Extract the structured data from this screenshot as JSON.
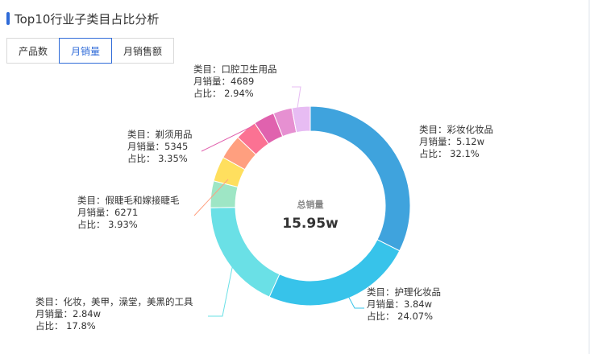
{
  "header": {
    "title": "Top10行业子类目占比分析",
    "accent_color": "#2f6bd8"
  },
  "tabs": [
    {
      "label": "产品数",
      "active": false
    },
    {
      "label": "月销量",
      "active": true
    },
    {
      "label": "月销售额",
      "active": false
    }
  ],
  "chart_data": {
    "type": "pie",
    "donut": true,
    "center_caption": "总销量",
    "center_value": "15.95w",
    "slices": [
      {
        "category": "彩妆化妆品",
        "value_text": "5.12w",
        "percent": 32.1,
        "color": "#3fa3dd",
        "label": {
          "l1": "类目：彩妆化妆品",
          "l2": "月销量：5.12w",
          "l3": "占比： 32.1%"
        }
      },
      {
        "category": "护理化妆品",
        "value_text": "3.84w",
        "percent": 24.07,
        "color": "#37c3ea",
        "label": {
          "l1": "类目：护理化妆品",
          "l2": "月销量：3.84w",
          "l3": "占比： 24.07%"
        }
      },
      {
        "category": "化妆，美甲，澡堂，美黑的工具",
        "value_text": "2.84w",
        "percent": 17.8,
        "color": "#6ae0e6",
        "label": {
          "l1": "类目：化妆，美甲，澡堂，美黑的工具",
          "l2": "月销量：2.84w",
          "l3": "占比： 17.8%"
        }
      },
      {
        "category": "",
        "value_text": "",
        "percent": 4.3,
        "color": "#9ee6c5",
        "label": null
      },
      {
        "category": "",
        "value_text": "",
        "percent": 4.0,
        "color": "#ffdf5e",
        "label": null
      },
      {
        "category": "假睫毛和嫁接睫毛",
        "value_text": "6271",
        "percent": 3.93,
        "color": "#ff9f7f",
        "label": {
          "l1": "类目：假睫毛和嫁接睫毛",
          "l2": "月销量：6271",
          "l3": "占比： 3.93%"
        }
      },
      {
        "category": "",
        "value_text": "",
        "percent": 3.5,
        "color": "#fb7293",
        "label": null
      },
      {
        "category": "剃须用品",
        "value_text": "5345",
        "percent": 3.35,
        "color": "#e062ae",
        "label": {
          "l1": "类目：剃须用品",
          "l2": "月销量：5345",
          "l3": "占比： 3.35%"
        }
      },
      {
        "category": "",
        "value_text": "",
        "percent": 3.01,
        "color": "#e690d1",
        "label": null
      },
      {
        "category": "口腔卫生用品",
        "value_text": "4689",
        "percent": 2.94,
        "color": "#e7bcf3",
        "label": {
          "l1": "类目：口腔卫生用品",
          "l2": "月销量：4689",
          "l3": "占比： 2.94%"
        }
      }
    ]
  }
}
